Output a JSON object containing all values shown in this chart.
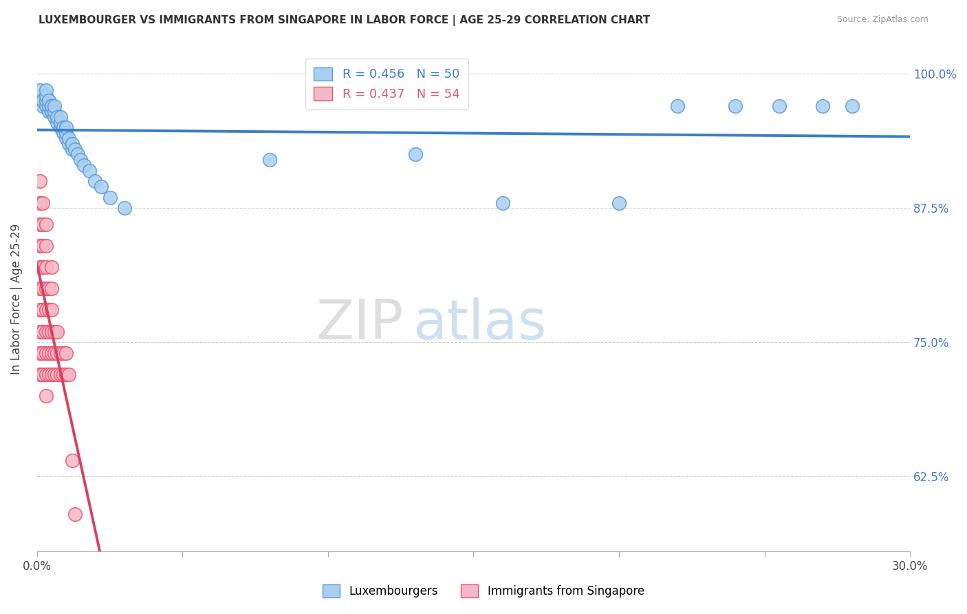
{
  "title": "LUXEMBOURGER VS IMMIGRANTS FROM SINGAPORE IN LABOR FORCE | AGE 25-29 CORRELATION CHART",
  "source": "Source: ZipAtlas.com",
  "ylabel": "In Labor Force | Age 25-29",
  "xlim": [
    0.0,
    0.3
  ],
  "ylim": [
    0.555,
    1.025
  ],
  "yticks": [
    0.625,
    0.75,
    0.875,
    1.0
  ],
  "ytick_labels": [
    "62.5%",
    "75.0%",
    "87.5%",
    "100.0%"
  ],
  "xticks": [
    0.0,
    0.05,
    0.1,
    0.15,
    0.2,
    0.25,
    0.3
  ],
  "xtick_labels": [
    "0.0%",
    "",
    "",
    "",
    "",
    "",
    "30.0%"
  ],
  "blue_R": 0.456,
  "blue_N": 50,
  "pink_R": 0.437,
  "pink_N": 54,
  "blue_color": "#a8cff0",
  "pink_color": "#f5b8c8",
  "blue_edge_color": "#5b9bd5",
  "pink_edge_color": "#e8536a",
  "blue_line_color": "#3a7ec6",
  "pink_line_color": "#d94060",
  "legend_label_blue": "Luxembourgers",
  "legend_label_pink": "Immigrants from Singapore",
  "watermark_zip": "ZIP",
  "watermark_atlas": "atlas",
  "blue_x": [
    0.001,
    0.001,
    0.002,
    0.002,
    0.003,
    0.003,
    0.003,
    0.003,
    0.004,
    0.004,
    0.004,
    0.005,
    0.005,
    0.005,
    0.005,
    0.006,
    0.006,
    0.006,
    0.007,
    0.007,
    0.008,
    0.008,
    0.008,
    0.009,
    0.009,
    0.01,
    0.01,
    0.01,
    0.011,
    0.011,
    0.012,
    0.012,
    0.013,
    0.014,
    0.015,
    0.016,
    0.018,
    0.02,
    0.022,
    0.025,
    0.03,
    0.08,
    0.13,
    0.16,
    0.2,
    0.22,
    0.24,
    0.255,
    0.27,
    0.28
  ],
  "blue_y": [
    0.975,
    0.985,
    0.97,
    0.975,
    0.97,
    0.975,
    0.98,
    0.985,
    0.965,
    0.97,
    0.975,
    0.965,
    0.965,
    0.97,
    0.97,
    0.96,
    0.965,
    0.97,
    0.955,
    0.96,
    0.95,
    0.955,
    0.96,
    0.945,
    0.95,
    0.94,
    0.945,
    0.95,
    0.935,
    0.94,
    0.93,
    0.935,
    0.93,
    0.925,
    0.92,
    0.915,
    0.91,
    0.9,
    0.895,
    0.885,
    0.875,
    0.92,
    0.925,
    0.88,
    0.88,
    0.97,
    0.97,
    0.97,
    0.97,
    0.97
  ],
  "pink_x": [
    0.001,
    0.001,
    0.001,
    0.001,
    0.001,
    0.001,
    0.001,
    0.001,
    0.001,
    0.001,
    0.002,
    0.002,
    0.002,
    0.002,
    0.002,
    0.002,
    0.002,
    0.002,
    0.002,
    0.003,
    0.003,
    0.003,
    0.003,
    0.003,
    0.003,
    0.003,
    0.003,
    0.003,
    0.004,
    0.004,
    0.004,
    0.004,
    0.004,
    0.005,
    0.005,
    0.005,
    0.005,
    0.005,
    0.005,
    0.006,
    0.006,
    0.006,
    0.007,
    0.007,
    0.007,
    0.008,
    0.008,
    0.009,
    0.009,
    0.01,
    0.01,
    0.011,
    0.012,
    0.013
  ],
  "pink_y": [
    0.72,
    0.74,
    0.76,
    0.78,
    0.8,
    0.82,
    0.84,
    0.86,
    0.88,
    0.9,
    0.72,
    0.74,
    0.76,
    0.78,
    0.8,
    0.82,
    0.84,
    0.86,
    0.88,
    0.7,
    0.72,
    0.74,
    0.76,
    0.78,
    0.8,
    0.82,
    0.84,
    0.86,
    0.72,
    0.74,
    0.76,
    0.78,
    0.8,
    0.72,
    0.74,
    0.76,
    0.78,
    0.8,
    0.82,
    0.72,
    0.74,
    0.76,
    0.72,
    0.74,
    0.76,
    0.72,
    0.74,
    0.72,
    0.74,
    0.72,
    0.74,
    0.72,
    0.64,
    0.59
  ]
}
